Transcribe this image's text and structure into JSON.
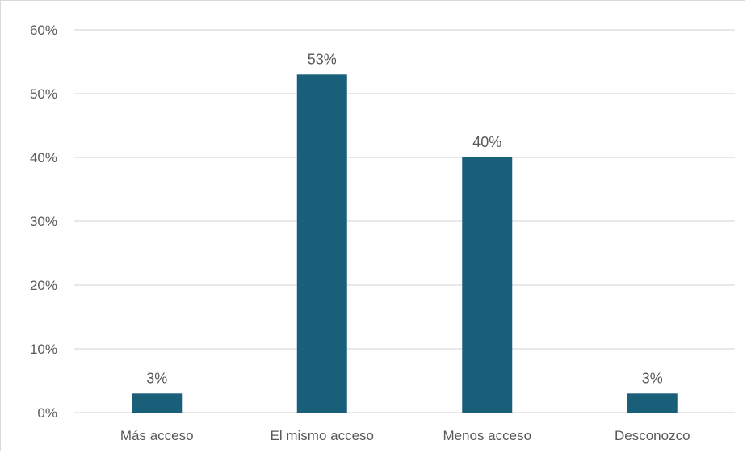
{
  "chart_data": {
    "type": "bar",
    "title": "",
    "xlabel": "",
    "ylabel": "",
    "categories": [
      "Más acceso",
      "El mismo acceso",
      "Menos acceso",
      "Desconozco"
    ],
    "values": [
      3,
      53,
      40,
      3
    ],
    "data_labels": [
      "3%",
      "53%",
      "40%",
      "3%"
    ],
    "ylim": [
      0,
      60
    ],
    "y_ticks": [
      0,
      10,
      20,
      30,
      40,
      50,
      60
    ],
    "y_tick_labels": [
      "0%",
      "10%",
      "20%",
      "30%",
      "40%",
      "50%",
      "60%"
    ],
    "grid": true,
    "legend": "none",
    "bar_color": "#1a5f7a",
    "grid_color": "#d9d9d9",
    "text_color": "#595959"
  }
}
